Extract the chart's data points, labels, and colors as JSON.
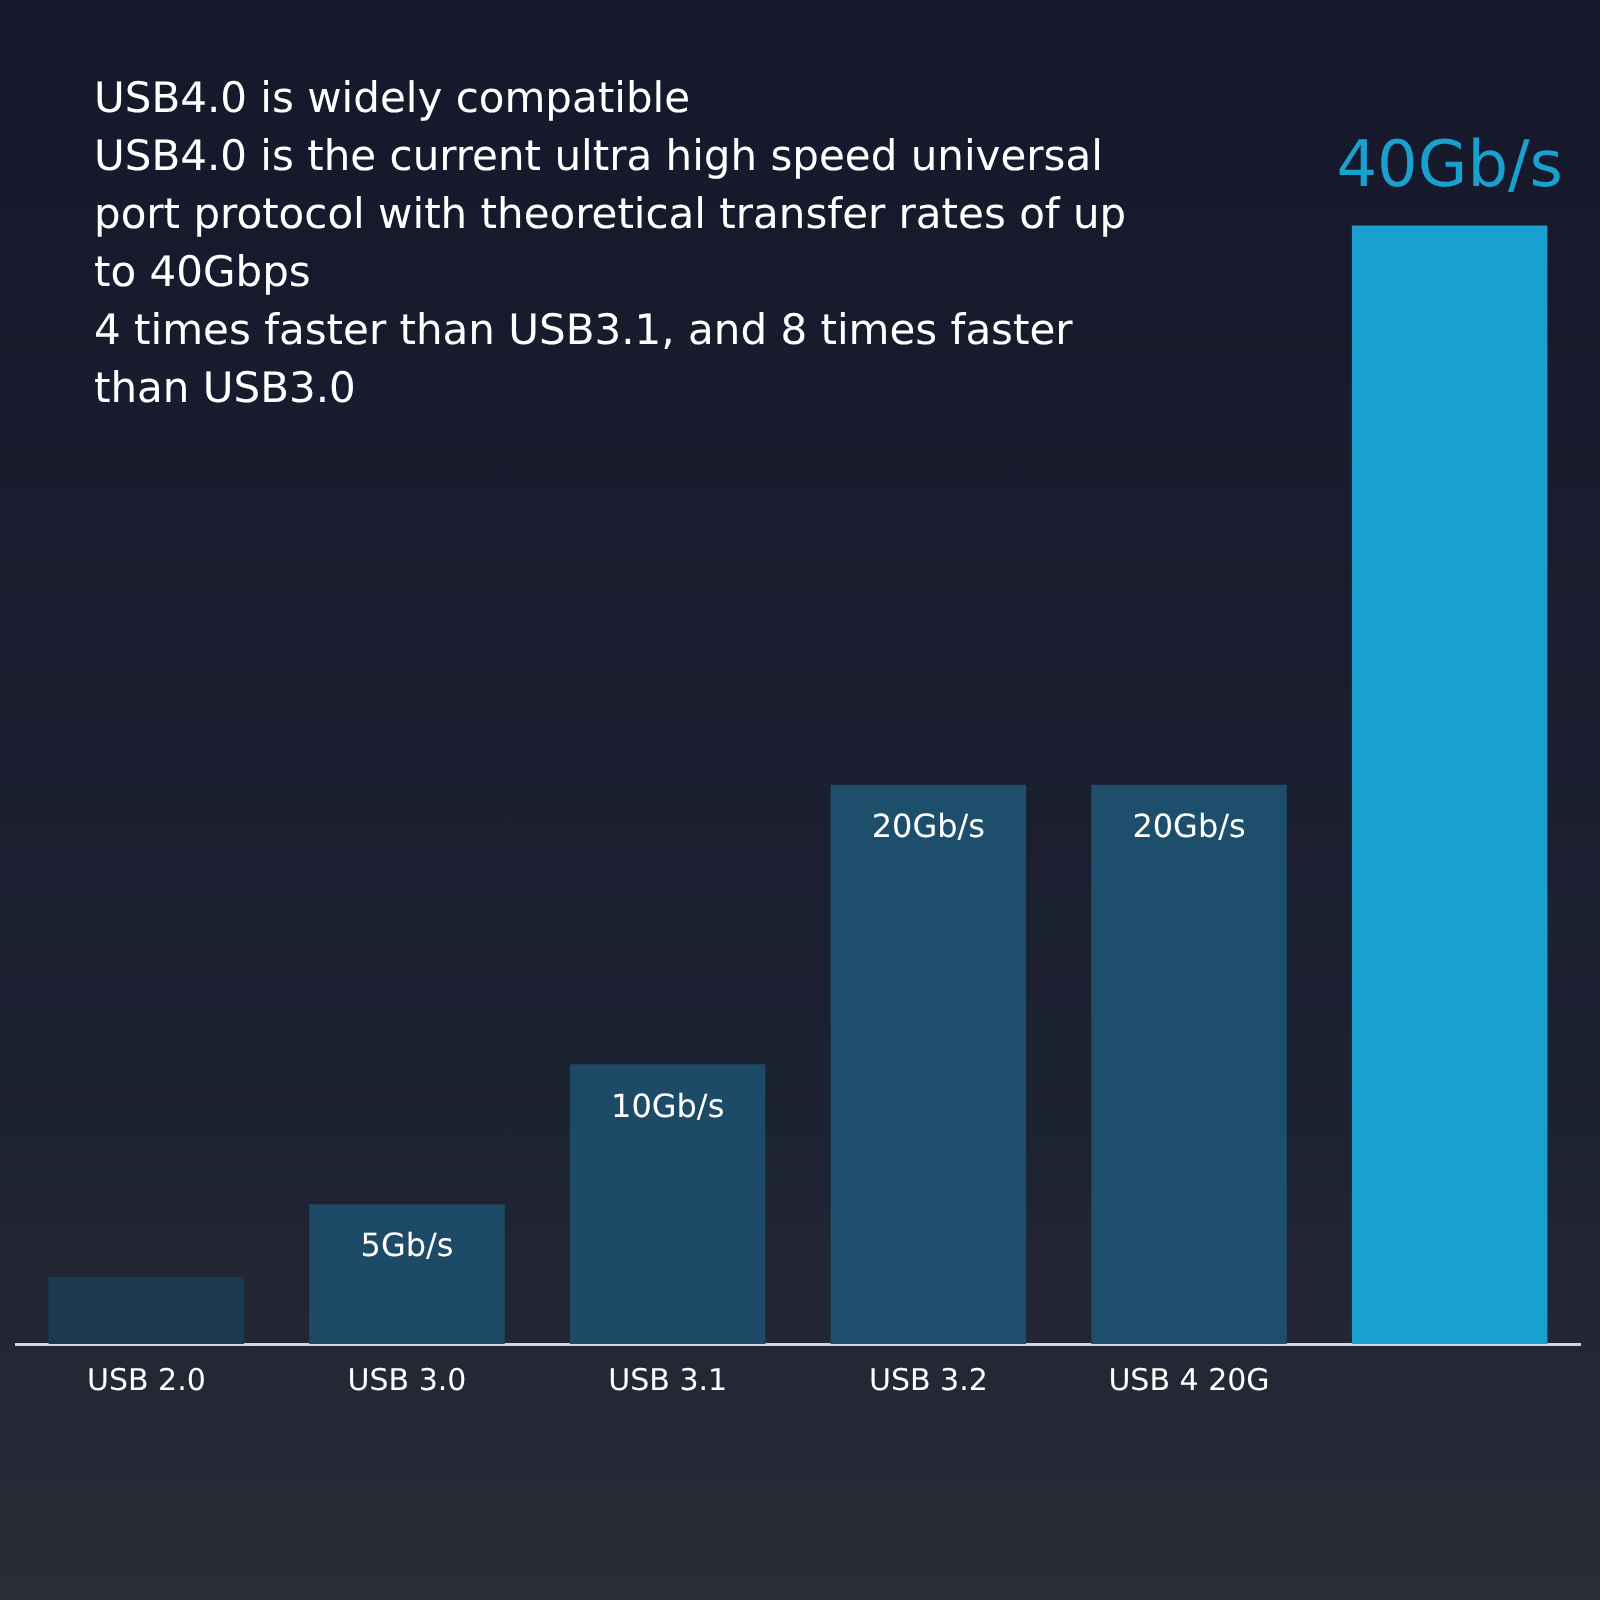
{
  "chart_data": {
    "type": "bar",
    "title": "USB4.0 is widely compatible",
    "annotations": [
      "USB4.0 is the current ultra high speed universal port protocol with theoretical transfer rates of up to 40Gbps",
      "4 times faster than USB3.1, and 8 times faster than USB3.0"
    ],
    "categories": [
      "USB 2.0",
      "USB 3.0",
      "USB 3.1",
      "USB 3.2",
      "USB 4 20G",
      null
    ],
    "values": [
      2.4,
      5,
      10,
      20,
      20,
      40
    ],
    "colors": [
      "#1b3a52",
      "#1d4a66",
      "#1d4a66",
      "#1d4f6d",
      "#1d4f6d",
      "#1aa0cf"
    ],
    "value_labels": [
      null,
      "5Gb/s",
      "10Gb/s",
      "20Gb/s",
      "20Gb/s",
      "40Gb/s"
    ]
  }
}
